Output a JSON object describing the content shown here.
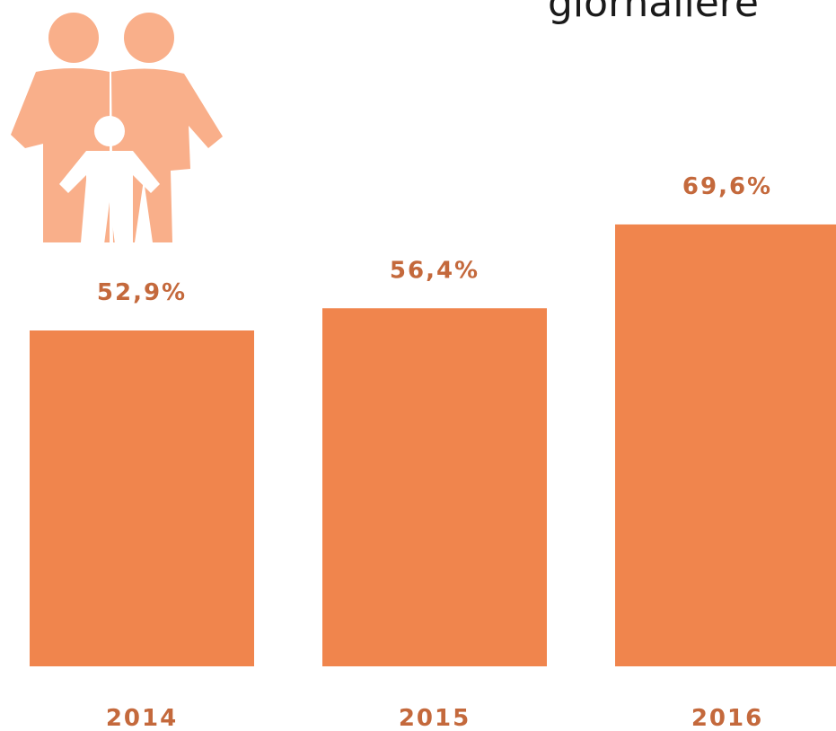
{
  "chart_data": {
    "type": "bar",
    "title": "giornaliere",
    "categories": [
      "2014",
      "2015",
      "2016"
    ],
    "values": [
      52.9,
      56.4,
      69.6
    ],
    "value_labels": [
      "52,9%",
      "56,4%",
      "69,6%"
    ],
    "color": "#f0854d",
    "ylim": [
      0,
      100
    ]
  }
}
